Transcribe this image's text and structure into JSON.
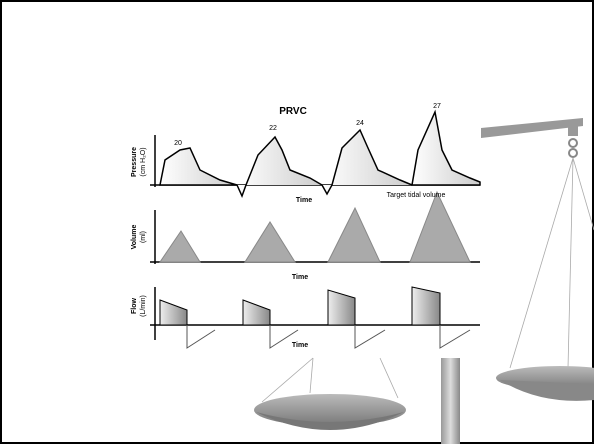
{
  "title": "PRVC",
  "pressure": {
    "label": "Pressure",
    "unit": "(cm H₂O)",
    "x_label": "Time",
    "peaks": [
      20,
      22,
      24,
      27
    ]
  },
  "volume": {
    "label": "Volume",
    "unit": "(ml)",
    "x_label": "Time",
    "annotation": "Target tidal volume"
  },
  "flow": {
    "label": "Flow",
    "unit": "(L/min)",
    "x_label": "Time"
  }
}
